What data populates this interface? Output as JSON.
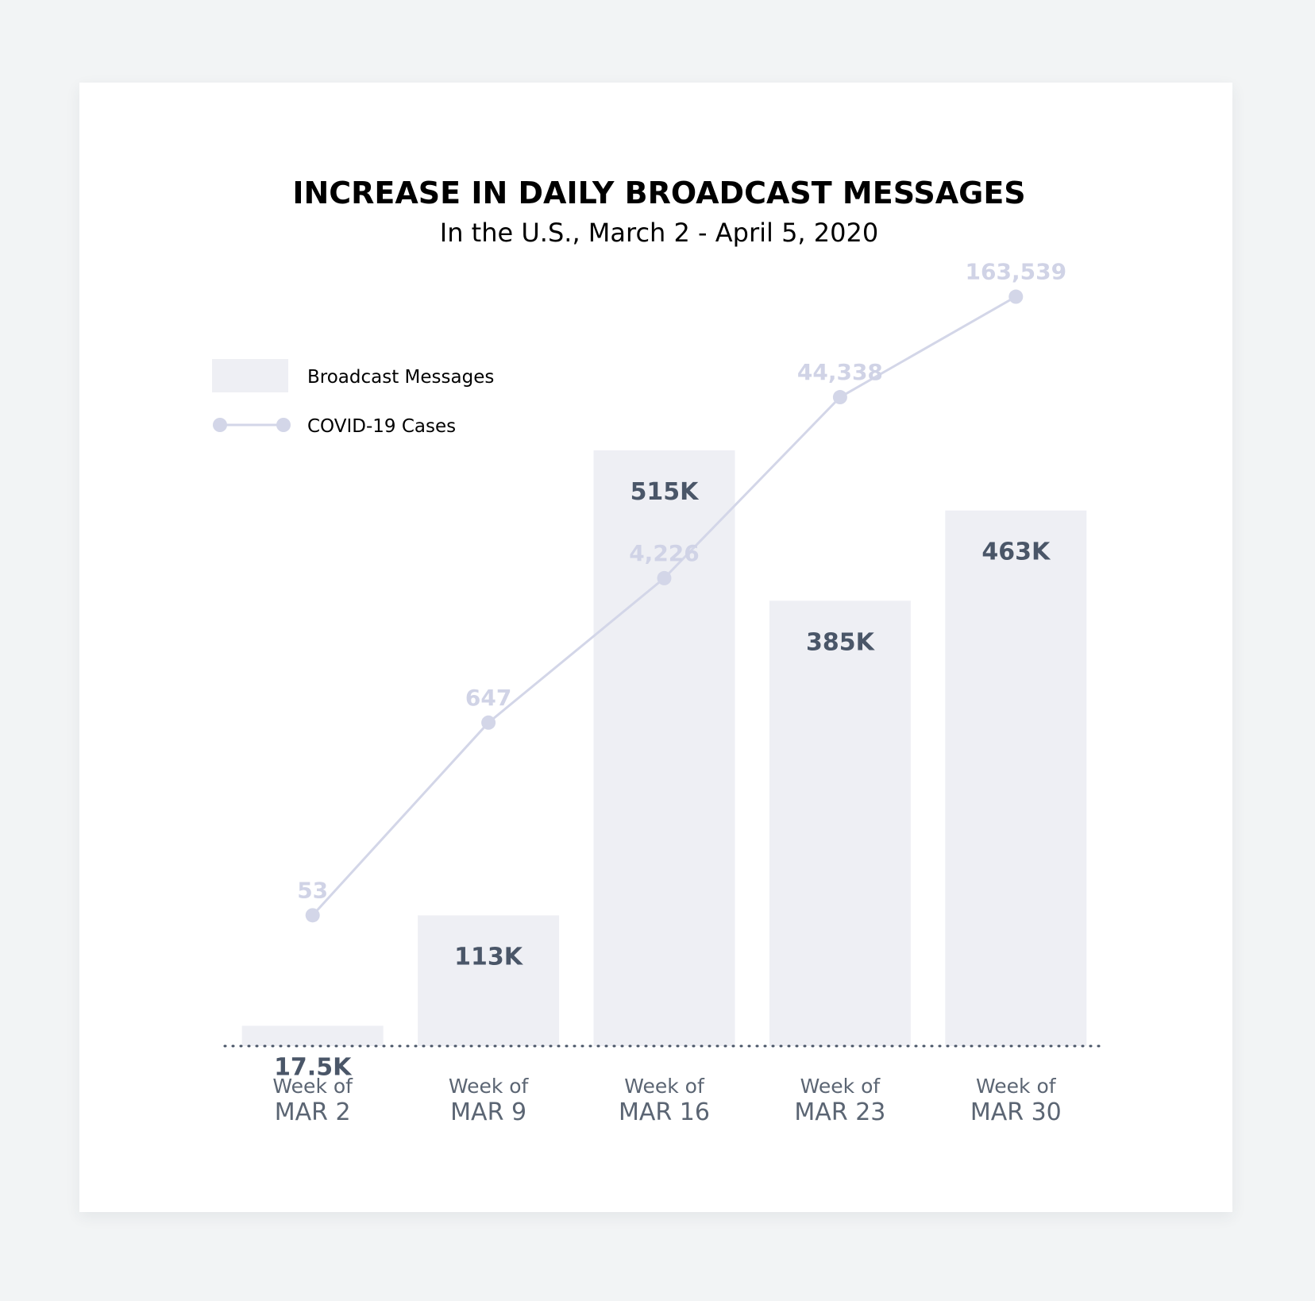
{
  "chart_data": {
    "type": "bar",
    "title": "INCREASE IN DAILY BROADCAST MESSAGES",
    "subtitle": "In the U.S., March 2 - April 5, 2020",
    "categories": [
      {
        "prefix": "Week of",
        "label": "MAR 2"
      },
      {
        "prefix": "Week of",
        "label": "MAR 9"
      },
      {
        "prefix": "Week of",
        "label": "MAR 16"
      },
      {
        "prefix": "Week of",
        "label": "MAR 23"
      },
      {
        "prefix": "Week of",
        "label": "MAR 30"
      }
    ],
    "series": [
      {
        "name": "Broadcast Messages",
        "type": "bar",
        "values": [
          17500,
          113000,
          515000,
          385000,
          463000
        ],
        "labels": [
          "17.5K",
          "113K",
          "515K",
          "385K",
          "463K"
        ]
      },
      {
        "name": "COVID-19 Cases",
        "type": "line",
        "values": [
          53,
          647,
          4226,
          44338,
          163539
        ],
        "labels": [
          "53",
          "647",
          "4,226",
          "44,338",
          "163,539"
        ]
      }
    ],
    "legend_position": "top-left",
    "grid": false,
    "baseline": "dotted"
  },
  "colors": {
    "background": "#f2f4f5",
    "card": "#ffffff",
    "bar": "#eeeff4",
    "line": "#d3d6e8",
    "line_label": "#d0d3e6",
    "text_dark": "#4a5668",
    "text_medium": "#5b6573",
    "baseline": "#4a5668"
  }
}
